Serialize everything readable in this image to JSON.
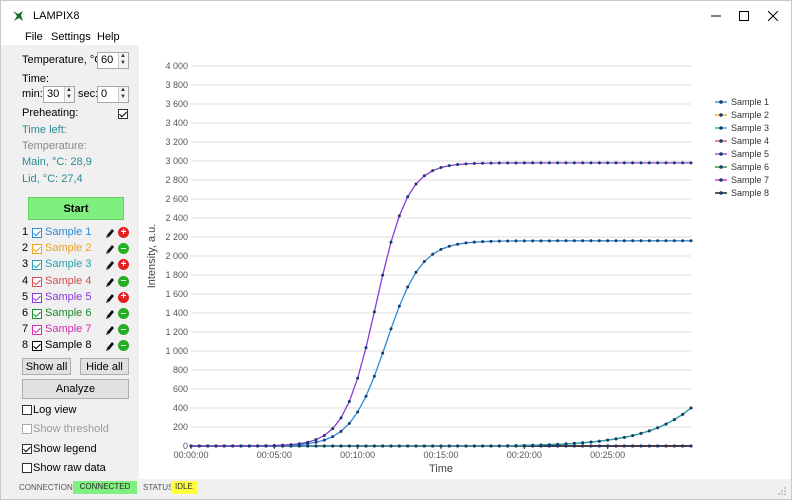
{
  "app": {
    "title": "LAMPIX8"
  },
  "menu": [
    "File",
    "Settings",
    "Help"
  ],
  "controls": {
    "temperature_label": "Temperature, °C:",
    "temperature_value": "60",
    "time_label": "Time:",
    "min_label": "min:",
    "min_value": "30",
    "sec_label": "sec:",
    "sec_value": "0",
    "preheating_label": "Preheating:",
    "preheating_checked": true,
    "time_left_label": "Time left:",
    "temperature_info_label": "Temperature:",
    "main_temp": "Main, °C: 28,9",
    "lid_temp": "Lid, °C: 27,4",
    "start_label": "Start"
  },
  "samples": [
    {
      "num": "1",
      "label": "Sample 1",
      "color": "#2a8ad8",
      "action": "remove"
    },
    {
      "num": "2",
      "label": "Sample 2",
      "color": "#f0a020",
      "action": "add"
    },
    {
      "num": "3",
      "label": "Sample 3",
      "color": "#2aa0b0",
      "action": "remove"
    },
    {
      "num": "4",
      "label": "Sample 4",
      "color": "#d05050",
      "action": "add"
    },
    {
      "num": "5",
      "label": "Sample 5",
      "color": "#8a3ad8",
      "action": "remove"
    },
    {
      "num": "6",
      "label": "Sample 6",
      "color": "#1a8a2a",
      "action": "add"
    },
    {
      "num": "7",
      "label": "Sample 7",
      "color": "#d030b0",
      "action": "add"
    },
    {
      "num": "8",
      "label": "Sample 8",
      "color": "#000000",
      "action": "add"
    }
  ],
  "buttons": {
    "show_all": "Show all",
    "hide_all": "Hide all",
    "analyze": "Analyze"
  },
  "options": [
    {
      "label": "Log view",
      "checked": false,
      "disabled": false
    },
    {
      "label": "Show threshold",
      "checked": false,
      "disabled": true
    },
    {
      "label": "Show legend",
      "checked": true,
      "disabled": false
    },
    {
      "label": "Show raw data",
      "checked": false,
      "disabled": false
    }
  ],
  "status": {
    "connection_label": "CONNECTION:",
    "connection_value": "CONNECTED",
    "status_label": "STATUS:",
    "status_value": "IDLE"
  },
  "chart_data": {
    "type": "line",
    "xlabel": "Time",
    "ylabel": "Intensity, a.u.",
    "ylim": [
      0,
      4000
    ],
    "xlim_min": [
      0,
      30
    ],
    "x_ticks": [
      "00:00:00",
      "00:05:00",
      "00:10:00",
      "00:15:00",
      "00:20:00",
      "00:25:00"
    ],
    "y_ticks": [
      "0",
      "200",
      "400",
      "600",
      "800",
      "1 000",
      "1 200",
      "1 400",
      "1 600",
      "1 800",
      "2 000",
      "2 200",
      "2 400",
      "2 600",
      "2 800",
      "3 000",
      "3 200",
      "3 400",
      "3 600",
      "3 800",
      "4 000"
    ],
    "grid": "horizontal",
    "legend": "right",
    "series": [
      {
        "name": "Sample 1",
        "color": "#2a8ad8",
        "model": "sigmoid",
        "max": 2160,
        "mid": 11.7,
        "k": 0.95
      },
      {
        "name": "Sample 2",
        "color": "#f0a020",
        "model": "flat",
        "value": 0
      },
      {
        "name": "Sample 3",
        "color": "#2aa0b0",
        "model": "exp",
        "end": 400,
        "start_min": 18,
        "scale": 0.36
      },
      {
        "name": "Sample 4",
        "color": "#d05050",
        "model": "flat",
        "value": 0
      },
      {
        "name": "Sample 5",
        "color": "#8a3ad8",
        "model": "sigmoid",
        "max": 2980,
        "mid": 11.1,
        "k": 1.05
      },
      {
        "name": "Sample 6",
        "color": "#1a8a2a",
        "model": "exp",
        "end": 400,
        "start_min": 18,
        "scale": 0.36
      },
      {
        "name": "Sample 7",
        "color": "#d030b0",
        "model": "flat",
        "value": 0
      },
      {
        "name": "Sample 8",
        "color": "#000000",
        "model": "flat",
        "value": 0
      }
    ]
  }
}
